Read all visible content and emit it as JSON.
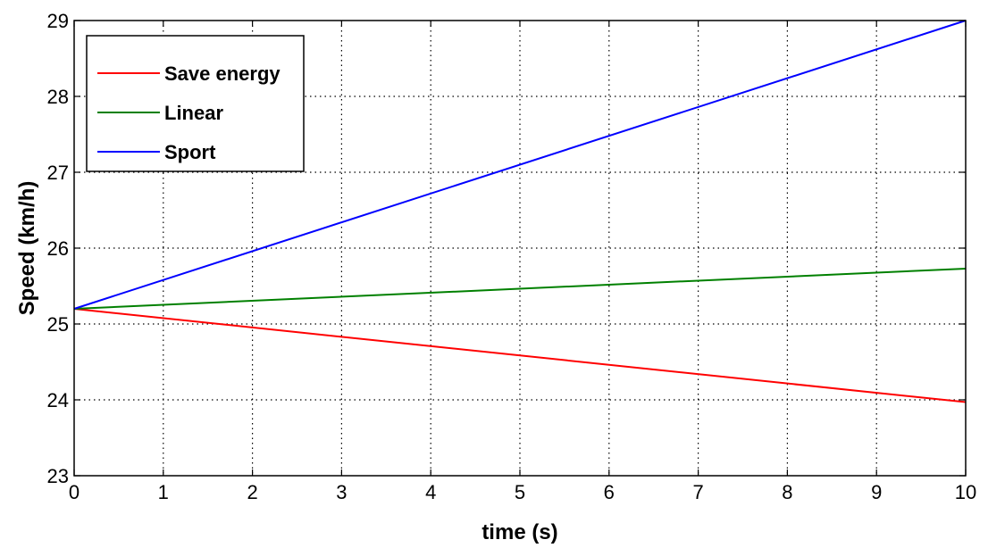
{
  "chart_data": {
    "type": "line",
    "xlabel": "time (s)",
    "ylabel": "Speed (km/h)",
    "xlim": [
      0,
      10
    ],
    "ylim": [
      23,
      29
    ],
    "xticks": [
      0,
      1,
      2,
      3,
      4,
      5,
      6,
      7,
      8,
      9,
      10
    ],
    "yticks": [
      23,
      24,
      25,
      26,
      27,
      28,
      29
    ],
    "grid": true,
    "grid_style": "dotted",
    "legend_position": "top-left",
    "x": [
      0,
      10
    ],
    "series": [
      {
        "name": "Save energy",
        "color": "#ff0000",
        "values": [
          25.2,
          23.97
        ]
      },
      {
        "name": "Linear",
        "color": "#008000",
        "values": [
          25.2,
          25.73
        ]
      },
      {
        "name": "Sport",
        "color": "#0000ff",
        "values": [
          25.2,
          29.0
        ]
      }
    ]
  }
}
